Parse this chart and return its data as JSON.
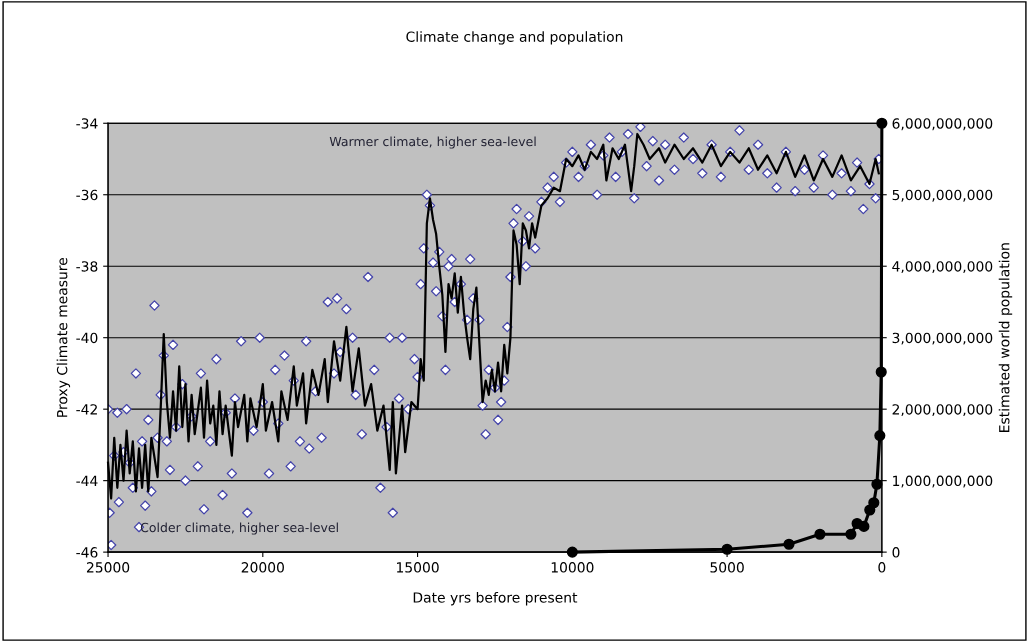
{
  "chart_data": {
    "type": "line",
    "title": "Climate change and population",
    "xlabel": "Date yrs before present",
    "ylabel": "Proxy Climate measure",
    "y2label": "Estimated world population",
    "xlim": [
      25000,
      0
    ],
    "xticks": [
      25000,
      20000,
      15000,
      10000,
      5000,
      0
    ],
    "ylim": [
      -46,
      -34
    ],
    "yticks": [
      -46,
      -44,
      -42,
      -40,
      -38,
      -36,
      -34
    ],
    "y2lim": [
      0,
      6000000000
    ],
    "y2ticks": [
      {
        "value": 0,
        "label": "0"
      },
      {
        "value": 1000000000,
        "label": "1,000,000,000"
      },
      {
        "value": 2000000000,
        "label": "2,000,000,000"
      },
      {
        "value": 3000000000,
        "label": "3,000,000,000"
      },
      {
        "value": 4000000000,
        "label": "4,000,000,000"
      },
      {
        "value": 5000000000,
        "label": "5,000,000,000"
      },
      {
        "value": 6000000000,
        "label": "6,000,000,000"
      }
    ],
    "grid": "y",
    "legend": false,
    "annotations": [
      "Warmer climate, higher sea-level",
      "Colder climate, higher sea-level"
    ],
    "series": [
      {
        "type": "scatter",
        "marker": "diamond",
        "color": "#4444aa",
        "x": [
          25000,
          24950,
          24900,
          24800,
          24700,
          24650,
          24500,
          24400,
          24300,
          24200,
          24100,
          24000,
          23900,
          23800,
          23700,
          23600,
          23500,
          23400,
          23300,
          23200,
          23100,
          23000,
          22900,
          22800,
          22600,
          22500,
          22300,
          22100,
          22000,
          21900,
          21700,
          21500,
          21300,
          21200,
          21000,
          20900,
          20700,
          20500,
          20300,
          20100,
          20000,
          19800,
          19600,
          19500,
          19300,
          19100,
          19000,
          18800,
          18600,
          18500,
          18300,
          18100,
          17900,
          17700,
          17600,
          17500,
          17300,
          17100,
          17000,
          16800,
          16600,
          16400,
          16200,
          16000,
          15900,
          15800,
          15600,
          15500,
          15300,
          15100,
          15000,
          14900,
          14800,
          14700,
          14600,
          14500,
          14400,
          14300,
          14200,
          14100,
          14000,
          13900,
          13800,
          13600,
          13400,
          13300,
          13200,
          13000,
          12900,
          12800,
          12700,
          12500,
          12400,
          12300,
          12200,
          12100,
          12000,
          11900,
          11800,
          11600,
          11500,
          11400,
          11200,
          11000,
          10800,
          10600,
          10400,
          10200,
          10000,
          9800,
          9600,
          9400,
          9200,
          9000,
          8800,
          8600,
          8400,
          8200,
          8000,
          7800,
          7600,
          7400,
          7200,
          7000,
          6700,
          6400,
          6100,
          5800,
          5500,
          5200,
          4900,
          4600,
          4300,
          4000,
          3700,
          3400,
          3100,
          2800,
          2500,
          2200,
          1900,
          1600,
          1300,
          1000,
          800,
          600,
          400,
          200,
          100
        ],
        "values": [
          -42.0,
          -44.9,
          -45.8,
          -43.3,
          -42.1,
          -44.6,
          -43.2,
          -42.0,
          -43.5,
          -44.2,
          -41.0,
          -45.3,
          -42.9,
          -44.7,
          -42.3,
          -44.3,
          -39.1,
          -42.8,
          -41.6,
          -40.5,
          -42.9,
          -43.7,
          -40.2,
          -42.5,
          -41.3,
          -44.0,
          -42.2,
          -43.6,
          -41.0,
          -44.8,
          -42.9,
          -40.6,
          -44.4,
          -42.1,
          -43.8,
          -41.7,
          -40.1,
          -44.9,
          -42.6,
          -40.0,
          -41.8,
          -43.8,
          -40.9,
          -42.4,
          -40.5,
          -43.6,
          -41.2,
          -42.9,
          -40.1,
          -43.1,
          -41.5,
          -42.8,
          -39.0,
          -41.0,
          -38.9,
          -40.4,
          -39.2,
          -40.0,
          -41.6,
          -42.7,
          -38.3,
          -40.9,
          -44.2,
          -42.5,
          -40.0,
          -44.9,
          -41.7,
          -40.0,
          -42.0,
          -40.6,
          -41.1,
          -38.5,
          -37.5,
          -36.0,
          -36.3,
          -37.9,
          -38.7,
          -37.6,
          -39.4,
          -40.9,
          -38.0,
          -37.8,
          -39.0,
          -38.5,
          -39.5,
          -37.8,
          -38.9,
          -39.5,
          -41.9,
          -42.7,
          -40.9,
          -41.4,
          -42.3,
          -41.8,
          -41.2,
          -39.7,
          -38.3,
          -36.8,
          -36.4,
          -37.3,
          -38.0,
          -36.6,
          -37.5,
          -36.2,
          -35.8,
          -35.5,
          -36.2,
          -35.1,
          -34.8,
          -35.5,
          -35.2,
          -34.6,
          -36.0,
          -34.9,
          -34.4,
          -35.5,
          -34.8,
          -34.3,
          -36.1,
          -34.1,
          -35.2,
          -34.5,
          -35.6,
          -34.6,
          -35.3,
          -34.4,
          -35.0,
          -35.4,
          -34.6,
          -35.5,
          -34.8,
          -34.2,
          -35.3,
          -34.6,
          -35.4,
          -35.8,
          -34.8,
          -35.9,
          -35.3,
          -35.8,
          -34.9,
          -36.0,
          -35.4,
          -35.9,
          -35.1,
          -36.4,
          -35.7,
          -36.1,
          -35.0
        ]
      },
      {
        "marker": "none",
        "color": "#000000",
        "x": [
          25000,
          24900,
          24800,
          24700,
          24600,
          24500,
          24400,
          24300,
          24200,
          24100,
          24000,
          23900,
          23800,
          23700,
          23600,
          23400,
          23300,
          23200,
          23100,
          23000,
          22900,
          22800,
          22700,
          22600,
          22500,
          22400,
          22300,
          22200,
          22000,
          21900,
          21800,
          21700,
          21600,
          21500,
          21400,
          21300,
          21200,
          21000,
          20900,
          20800,
          20600,
          20500,
          20400,
          20200,
          20000,
          19900,
          19700,
          19500,
          19400,
          19200,
          19000,
          18900,
          18700,
          18600,
          18400,
          18200,
          18000,
          17900,
          17700,
          17500,
          17300,
          17100,
          16900,
          16700,
          16500,
          16300,
          16100,
          15900,
          15800,
          15700,
          15500,
          15400,
          15200,
          15000,
          14900,
          14800,
          14700,
          14600,
          14500,
          14400,
          14300,
          14200,
          14100,
          14000,
          13900,
          13800,
          13700,
          13600,
          13500,
          13400,
          13300,
          13200,
          13100,
          13000,
          12900,
          12800,
          12700,
          12600,
          12500,
          12400,
          12300,
          12200,
          12100,
          12000,
          11900,
          11800,
          11700,
          11600,
          11500,
          11400,
          11300,
          11200,
          11000,
          10800,
          10600,
          10400,
          10200,
          10000,
          9800,
          9600,
          9400,
          9200,
          9000,
          8900,
          8700,
          8500,
          8300,
          8100,
          8000,
          7900,
          7700,
          7500,
          7200,
          7000,
          6700,
          6400,
          6100,
          5800,
          5500,
          5200,
          4900,
          4600,
          4300,
          4000,
          3700,
          3400,
          3100,
          2800,
          2500,
          2200,
          1900,
          1600,
          1300,
          1000,
          700,
          400,
          200,
          100
        ],
        "values": [
          -43.5,
          -44.5,
          -42.8,
          -44.2,
          -43.0,
          -44.0,
          -42.6,
          -43.8,
          -42.9,
          -44.3,
          -43.1,
          -44.2,
          -43.0,
          -44.3,
          -42.8,
          -43.9,
          -42.0,
          -39.9,
          -41.8,
          -42.8,
          -41.5,
          -42.6,
          -40.8,
          -42.5,
          -41.3,
          -42.9,
          -41.6,
          -42.7,
          -41.4,
          -42.8,
          -41.2,
          -42.4,
          -41.9,
          -43.0,
          -41.5,
          -42.7,
          -41.9,
          -43.3,
          -41.8,
          -42.5,
          -41.6,
          -42.9,
          -41.7,
          -42.5,
          -41.3,
          -42.6,
          -41.8,
          -42.9,
          -41.5,
          -42.3,
          -40.8,
          -41.9,
          -41.0,
          -42.4,
          -40.9,
          -41.6,
          -40.6,
          -41.8,
          -40.1,
          -41.2,
          -39.7,
          -41.5,
          -40.3,
          -41.9,
          -41.3,
          -42.6,
          -41.9,
          -43.7,
          -41.8,
          -43.8,
          -41.9,
          -43.2,
          -41.8,
          -42.0,
          -40.6,
          -41.2,
          -36.8,
          -36.1,
          -36.7,
          -37.1,
          -38.0,
          -38.8,
          -40.4,
          -38.5,
          -38.9,
          -38.2,
          -39.3,
          -38.3,
          -39.3,
          -40.0,
          -40.6,
          -39.2,
          -38.6,
          -40.2,
          -41.8,
          -41.2,
          -41.6,
          -40.9,
          -41.5,
          -40.7,
          -41.5,
          -40.2,
          -41.0,
          -40.0,
          -37.0,
          -37.4,
          -38.5,
          -36.8,
          -37.0,
          -37.5,
          -36.8,
          -37.2,
          -36.3,
          -36.1,
          -35.8,
          -35.9,
          -35.0,
          -35.2,
          -34.9,
          -35.3,
          -34.8,
          -35.0,
          -34.6,
          -35.6,
          -34.7,
          -35.0,
          -34.6,
          -35.9,
          -35.2,
          -34.3,
          -34.6,
          -35.0,
          -34.7,
          -35.1,
          -34.6,
          -35.0,
          -34.7,
          -35.1,
          -34.6,
          -35.2,
          -34.8,
          -35.1,
          -34.7,
          -35.3,
          -34.9,
          -35.4,
          -34.8,
          -35.5,
          -34.9,
          -35.6,
          -35.0,
          -35.5,
          -34.9,
          -35.6,
          -35.2,
          -35.7,
          -35.0,
          -35.4
        ]
      },
      {
        "type": "line",
        "axis": "y2",
        "marker": "circle",
        "color": "#000000",
        "x": [
          10000,
          5000,
          3000,
          2000,
          1000,
          800,
          580,
          390,
          260,
          160,
          65,
          20,
          0
        ],
        "values": [
          0,
          40000000,
          110000000,
          250000000,
          250000000,
          400000000,
          360000000,
          590000000,
          690000000,
          950000000,
          1630000000,
          2520000000,
          6000000000
        ]
      }
    ]
  }
}
